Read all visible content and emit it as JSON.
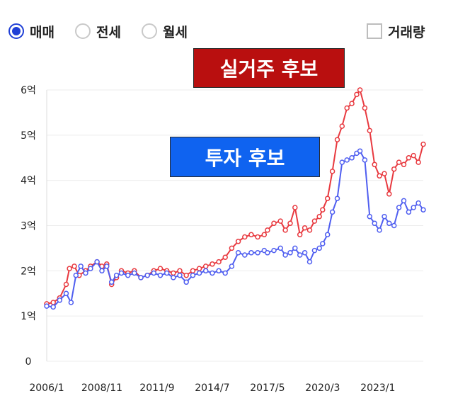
{
  "controls": {
    "radios": [
      {
        "label": "매매",
        "checked": true
      },
      {
        "label": "전세",
        "checked": false
      },
      {
        "label": "월세",
        "checked": false
      }
    ],
    "volume_checkbox": {
      "label": "거래량",
      "checked": false
    }
  },
  "annotations": {
    "red": "실거주 후보",
    "blue": "투자 후보"
  },
  "colors": {
    "accent": "#1f3fd6",
    "red_series": "#e8393f",
    "blue_series": "#4f5ef0",
    "red_callout": "#b90f0f",
    "blue_callout": "#0f63f0"
  },
  "chart_data": {
    "type": "line",
    "ylim": [
      0,
      6
    ],
    "yunit_label": "억",
    "y_ticks": [
      "0",
      "1억",
      "2억",
      "3억",
      "4억",
      "5억",
      "6억"
    ],
    "x_ticks": [
      "2006/1",
      "2008/11",
      "2011/9",
      "2014/7",
      "2017/5",
      "2020/3",
      "2023/1"
    ],
    "xlim": [
      "2006/1",
      "2025/5"
    ],
    "grid": true,
    "series": [
      {
        "color": "#e8393f",
        "points": [
          [
            "2006/1",
            1.27
          ],
          [
            "2006/5",
            1.3
          ],
          [
            "2006/9",
            1.4
          ],
          [
            "2007/1",
            1.7
          ],
          [
            "2007/3",
            2.05
          ],
          [
            "2007/6",
            2.1
          ],
          [
            "2007/9",
            1.9
          ],
          [
            "2008/1",
            2.0
          ],
          [
            "2008/4",
            2.1
          ],
          [
            "2008/8",
            2.2
          ],
          [
            "2008/11",
            2.1
          ],
          [
            "2009/2",
            2.15
          ],
          [
            "2009/5",
            1.7
          ],
          [
            "2009/8",
            1.85
          ],
          [
            "2009/11",
            2.0
          ],
          [
            "2010/3",
            1.95
          ],
          [
            "2010/7",
            2.0
          ],
          [
            "2010/11",
            1.85
          ],
          [
            "2011/3",
            1.9
          ],
          [
            "2011/7",
            2.0
          ],
          [
            "2011/11",
            2.05
          ],
          [
            "2012/3",
            2.0
          ],
          [
            "2012/7",
            1.95
          ],
          [
            "2012/11",
            2.0
          ],
          [
            "2013/3",
            1.9
          ],
          [
            "2013/7",
            2.0
          ],
          [
            "2013/11",
            2.05
          ],
          [
            "2014/3",
            2.1
          ],
          [
            "2014/7",
            2.15
          ],
          [
            "2014/11",
            2.2
          ],
          [
            "2015/3",
            2.3
          ],
          [
            "2015/7",
            2.5
          ],
          [
            "2015/11",
            2.65
          ],
          [
            "2016/3",
            2.75
          ],
          [
            "2016/7",
            2.8
          ],
          [
            "2016/11",
            2.75
          ],
          [
            "2017/3",
            2.8
          ],
          [
            "2017/5",
            2.9
          ],
          [
            "2017/9",
            3.05
          ],
          [
            "2018/1",
            3.1
          ],
          [
            "2018/4",
            2.9
          ],
          [
            "2018/7",
            3.05
          ],
          [
            "2018/10",
            3.4
          ],
          [
            "2019/1",
            2.8
          ],
          [
            "2019/4",
            2.95
          ],
          [
            "2019/7",
            2.9
          ],
          [
            "2019/10",
            3.1
          ],
          [
            "2020/1",
            3.2
          ],
          [
            "2020/3",
            3.35
          ],
          [
            "2020/6",
            3.6
          ],
          [
            "2020/9",
            4.2
          ],
          [
            "2020/12",
            4.9
          ],
          [
            "2021/3",
            5.2
          ],
          [
            "2021/6",
            5.6
          ],
          [
            "2021/9",
            5.7
          ],
          [
            "2021/12",
            5.9
          ],
          [
            "2022/2",
            6.0
          ],
          [
            "2022/5",
            5.6
          ],
          [
            "2022/8",
            5.1
          ],
          [
            "2022/11",
            4.35
          ],
          [
            "2023/2",
            4.1
          ],
          [
            "2023/5",
            4.15
          ],
          [
            "2023/8",
            3.7
          ],
          [
            "2023/11",
            4.25
          ],
          [
            "2024/2",
            4.4
          ],
          [
            "2024/5",
            4.35
          ],
          [
            "2024/8",
            4.5
          ],
          [
            "2024/11",
            4.55
          ],
          [
            "2025/2",
            4.4
          ],
          [
            "2025/5",
            4.8
          ]
        ]
      },
      {
        "color": "#4f5ef0",
        "points": [
          [
            "2006/1",
            1.22
          ],
          [
            "2006/5",
            1.2
          ],
          [
            "2006/9",
            1.35
          ],
          [
            "2007/1",
            1.5
          ],
          [
            "2007/4",
            1.3
          ],
          [
            "2007/7",
            1.9
          ],
          [
            "2007/10",
            2.1
          ],
          [
            "2008/1",
            1.95
          ],
          [
            "2008/4",
            2.05
          ],
          [
            "2008/8",
            2.2
          ],
          [
            "2008/11",
            2.0
          ],
          [
            "2009/2",
            2.1
          ],
          [
            "2009/5",
            1.75
          ],
          [
            "2009/8",
            1.9
          ],
          [
            "2009/11",
            1.95
          ],
          [
            "2010/3",
            1.9
          ],
          [
            "2010/7",
            1.95
          ],
          [
            "2010/11",
            1.85
          ],
          [
            "2011/3",
            1.9
          ],
          [
            "2011/7",
            1.95
          ],
          [
            "2011/11",
            1.9
          ],
          [
            "2012/3",
            1.95
          ],
          [
            "2012/7",
            1.85
          ],
          [
            "2012/11",
            1.9
          ],
          [
            "2013/3",
            1.75
          ],
          [
            "2013/7",
            1.9
          ],
          [
            "2013/11",
            1.95
          ],
          [
            "2014/3",
            2.0
          ],
          [
            "2014/7",
            1.95
          ],
          [
            "2014/11",
            2.0
          ],
          [
            "2015/3",
            1.95
          ],
          [
            "2015/7",
            2.1
          ],
          [
            "2015/11",
            2.4
          ],
          [
            "2016/3",
            2.35
          ],
          [
            "2016/7",
            2.4
          ],
          [
            "2016/11",
            2.4
          ],
          [
            "2017/3",
            2.45
          ],
          [
            "2017/5",
            2.4
          ],
          [
            "2017/9",
            2.45
          ],
          [
            "2018/1",
            2.5
          ],
          [
            "2018/4",
            2.35
          ],
          [
            "2018/7",
            2.4
          ],
          [
            "2018/10",
            2.5
          ],
          [
            "2019/1",
            2.35
          ],
          [
            "2019/4",
            2.4
          ],
          [
            "2019/7",
            2.2
          ],
          [
            "2019/10",
            2.45
          ],
          [
            "2020/1",
            2.5
          ],
          [
            "2020/3",
            2.6
          ],
          [
            "2020/6",
            2.8
          ],
          [
            "2020/9",
            3.3
          ],
          [
            "2020/12",
            3.6
          ],
          [
            "2021/3",
            4.4
          ],
          [
            "2021/6",
            4.45
          ],
          [
            "2021/9",
            4.5
          ],
          [
            "2021/12",
            4.6
          ],
          [
            "2022/2",
            4.65
          ],
          [
            "2022/5",
            4.45
          ],
          [
            "2022/8",
            3.2
          ],
          [
            "2022/11",
            3.05
          ],
          [
            "2023/2",
            2.9
          ],
          [
            "2023/5",
            3.2
          ],
          [
            "2023/8",
            3.05
          ],
          [
            "2023/11",
            3.0
          ],
          [
            "2024/2",
            3.4
          ],
          [
            "2024/5",
            3.55
          ],
          [
            "2024/8",
            3.3
          ],
          [
            "2024/11",
            3.4
          ],
          [
            "2025/2",
            3.5
          ],
          [
            "2025/5",
            3.35
          ]
        ]
      }
    ]
  }
}
